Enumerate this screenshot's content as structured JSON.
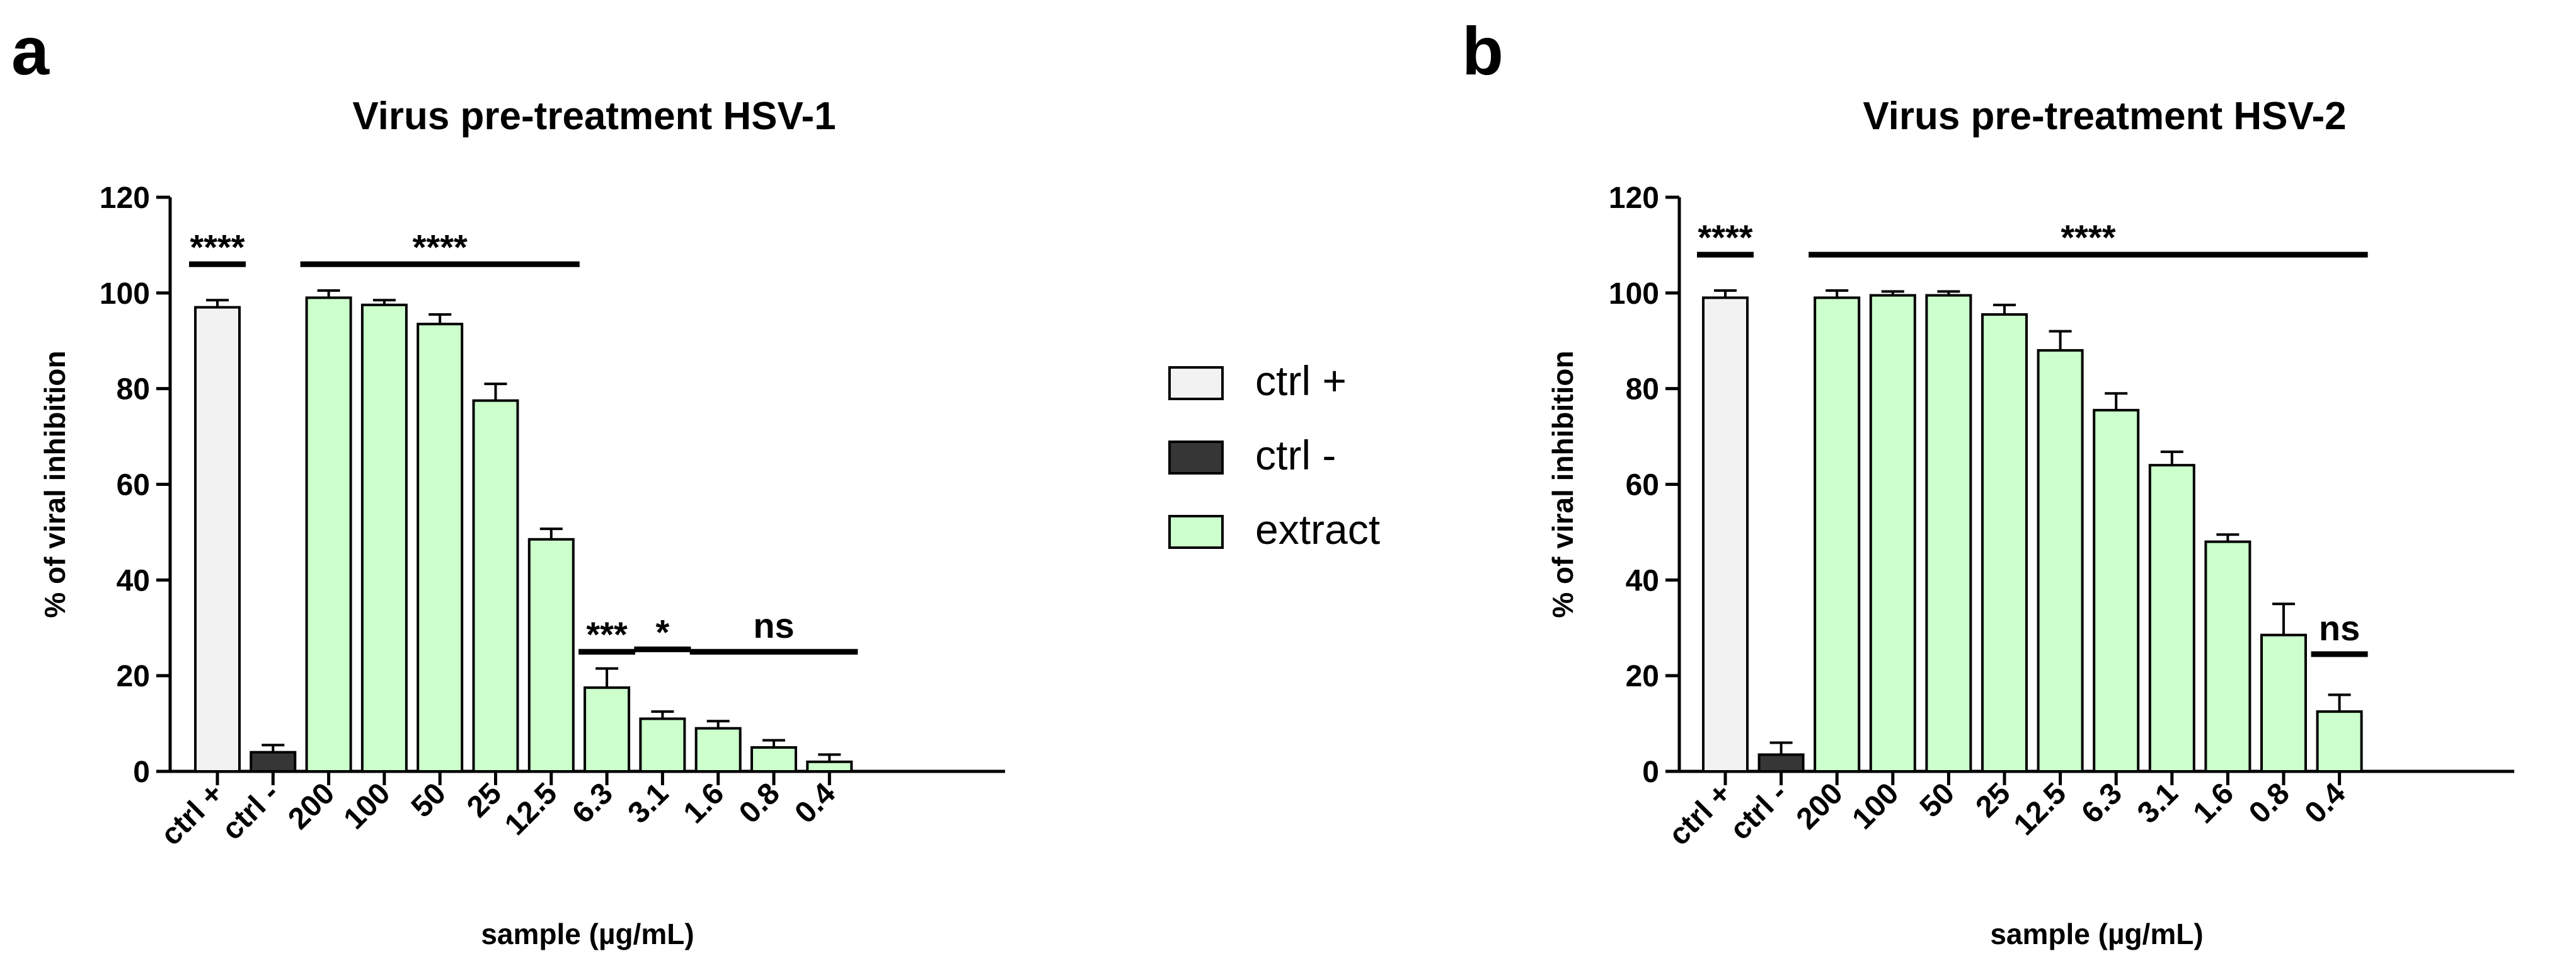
{
  "colors": {
    "ctrl_pos": "#f2f2f2",
    "ctrl_neg": "#363636",
    "extract": "#ccffcc",
    "stroke": "#000000"
  },
  "legend": {
    "items": [
      {
        "label": "ctrl +",
        "color": "#f2f2f2"
      },
      {
        "label": "ctrl -",
        "color": "#363636"
      },
      {
        "label": "extract",
        "color": "#ccffcc"
      }
    ]
  },
  "chart_data": [
    {
      "panel": "a",
      "type": "bar",
      "title": "Virus pre-treatment HSV-1",
      "xlabel": "sample (µg/mL)",
      "ylabel": "% of viral inhibition",
      "ylim": [
        0,
        120
      ],
      "yticks": [
        0,
        20,
        40,
        60,
        80,
        100,
        120
      ],
      "categories": [
        "ctrl +",
        "ctrl -",
        "200",
        "100",
        "50",
        "25",
        "12.5",
        "6.3",
        "3.1",
        "1.6",
        "0.8",
        "0.4"
      ],
      "groups": [
        "ctrl +",
        "ctrl -",
        "extract",
        "extract",
        "extract",
        "extract",
        "extract",
        "extract",
        "extract",
        "extract",
        "extract",
        "extract"
      ],
      "values": [
        97,
        4,
        99,
        97.5,
        93.5,
        77.5,
        48.5,
        17.5,
        11,
        9,
        5,
        2
      ],
      "errors": [
        1.5,
        1.5,
        1.5,
        1,
        2,
        3.5,
        2.2,
        4,
        1.5,
        1.5,
        1.5,
        1.5
      ],
      "significance": [
        {
          "label": "****",
          "from": 0,
          "to": 0,
          "y": 106
        },
        {
          "label": "****",
          "from": 2,
          "to": 6,
          "y": 106
        },
        {
          "label": "***",
          "from": 7,
          "to": 7,
          "y": 25
        },
        {
          "label": "*",
          "from": 8,
          "to": 8,
          "y": 25.5
        },
        {
          "label": "ns",
          "from": 9,
          "to": 11,
          "y": 25
        }
      ]
    },
    {
      "panel": "b",
      "type": "bar",
      "title": "Virus pre-treatment HSV-2",
      "xlabel": "sample (µg/mL)",
      "ylabel": "% of viral inhibition",
      "ylim": [
        0,
        120
      ],
      "yticks": [
        0,
        20,
        40,
        60,
        80,
        100,
        120
      ],
      "categories": [
        "ctrl +",
        "ctrl -",
        "200",
        "100",
        "50",
        "25",
        "12.5",
        "6.3",
        "3.1",
        "1.6",
        "0.8",
        "0.4"
      ],
      "groups": [
        "ctrl +",
        "ctrl -",
        "extract",
        "extract",
        "extract",
        "extract",
        "extract",
        "extract",
        "extract",
        "extract",
        "extract",
        "extract"
      ],
      "values": [
        99,
        3.5,
        99,
        99.5,
        99.5,
        95.5,
        88,
        75.5,
        64,
        48,
        28.5,
        12.5
      ],
      "errors": [
        1.5,
        2.5,
        1.5,
        0.8,
        0.8,
        2,
        4,
        3.5,
        2.8,
        1.5,
        6.5,
        3.5
      ],
      "significance": [
        {
          "label": "****",
          "from": 0,
          "to": 0,
          "y": 108
        },
        {
          "label": "****",
          "from": 2,
          "to": 11,
          "y": 108
        },
        {
          "label": "ns",
          "from": 11,
          "to": 11,
          "y": 24.5
        }
      ]
    }
  ]
}
